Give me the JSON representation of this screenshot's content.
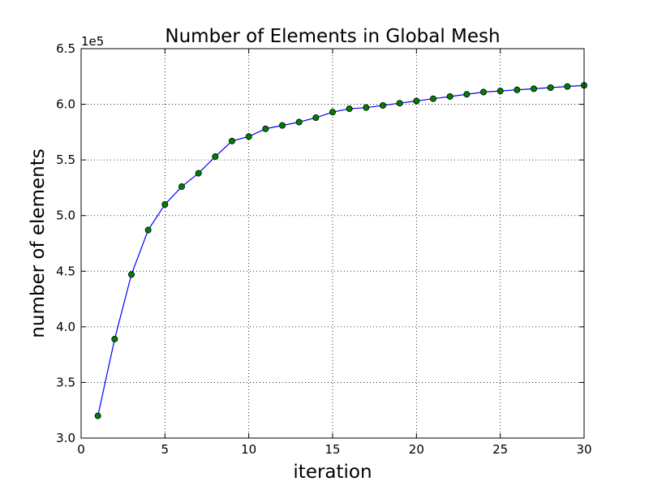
{
  "chart_data": {
    "type": "line",
    "title": "Number of Elements in Global Mesh",
    "xlabel": "iteration",
    "ylabel": "number of elements",
    "y_offset_label": "1e5",
    "xlim": [
      0,
      30
    ],
    "ylim": [
      3.0,
      6.5
    ],
    "y_scale_factor": 100000,
    "xticks": [
      0,
      5,
      10,
      15,
      20,
      25,
      30
    ],
    "xtick_labels": [
      "0",
      "5",
      "10",
      "15",
      "20",
      "25",
      "30"
    ],
    "yticks": [
      3.0,
      3.5,
      4.0,
      4.5,
      5.0,
      5.5,
      6.0,
      6.5
    ],
    "ytick_labels": [
      "3.0",
      "3.5",
      "4.0",
      "4.5",
      "5.0",
      "5.5",
      "6.0",
      "6.5"
    ],
    "grid": true,
    "legend": "none",
    "series": [
      {
        "line_color": "#0000ff",
        "marker_color": "#008000",
        "marker": "circle",
        "x": [
          1,
          2,
          3,
          4,
          5,
          6,
          7,
          8,
          9,
          10,
          11,
          12,
          13,
          14,
          15,
          16,
          17,
          18,
          19,
          20,
          21,
          22,
          23,
          24,
          25,
          26,
          27,
          28,
          29,
          30
        ],
        "y": [
          3.2,
          3.89,
          4.47,
          4.87,
          5.1,
          5.26,
          5.38,
          5.53,
          5.67,
          5.71,
          5.78,
          5.81,
          5.84,
          5.88,
          5.93,
          5.96,
          5.97,
          5.99,
          6.01,
          6.03,
          6.05,
          6.07,
          6.09,
          6.11,
          6.12,
          6.13,
          6.14,
          6.15,
          6.16,
          6.17
        ]
      }
    ]
  }
}
